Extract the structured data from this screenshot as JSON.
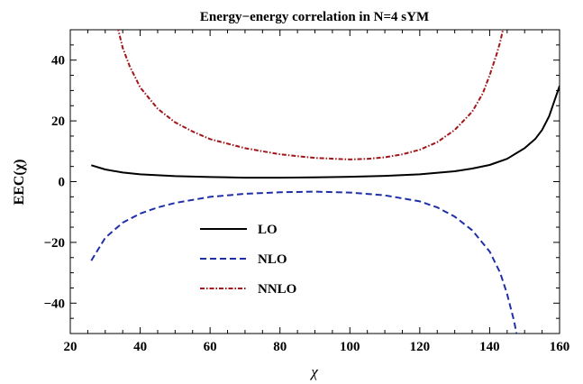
{
  "chart_data": {
    "type": "line",
    "title": "Energy−energy correlation in N=4 sYM",
    "xlabel": "χ",
    "ylabel": "EEC(χ)",
    "xlim": [
      20,
      160
    ],
    "ylim": [
      -50,
      50
    ],
    "xticks": [
      20,
      40,
      60,
      80,
      100,
      120,
      140,
      160
    ],
    "yticks": [
      -40,
      -20,
      0,
      20,
      40
    ],
    "xtick_labels": [
      "20",
      "40",
      "60",
      "80",
      "100",
      "120",
      "140",
      "160"
    ],
    "ytick_labels": [
      "−40",
      "−20",
      "0",
      "20",
      "40"
    ],
    "legend_position": "center-left",
    "series": [
      {
        "name": "LO",
        "color": "#000000",
        "style": "solid",
        "x": [
          26,
          30,
          35,
          40,
          50,
          60,
          70,
          80,
          90,
          100,
          110,
          120,
          130,
          135,
          140,
          145,
          150,
          153,
          155,
          157,
          160
        ],
        "y": [
          5.4,
          4.0,
          3.0,
          2.4,
          1.8,
          1.5,
          1.3,
          1.3,
          1.4,
          1.6,
          1.9,
          2.4,
          3.4,
          4.3,
          5.5,
          7.5,
          11.0,
          14.0,
          17.0,
          21.5,
          31.5
        ]
      },
      {
        "name": "NLO",
        "color": "#1f2fa8",
        "style": "dashed",
        "x": [
          26,
          30,
          35,
          40,
          45,
          50,
          60,
          70,
          80,
          90,
          100,
          110,
          120,
          125,
          130,
          135,
          140,
          143,
          145,
          147,
          148
        ],
        "y": [
          -26,
          -18.5,
          -13.5,
          -10.5,
          -8.5,
          -7,
          -5,
          -4,
          -3.5,
          -3.3,
          -3.6,
          -4.5,
          -6.5,
          -8.5,
          -11.5,
          -16,
          -23,
          -30,
          -37,
          -46,
          -52
        ]
      },
      {
        "name": "NNLO",
        "color": "#a0161a",
        "style": "dotdash",
        "x": [
          33.5,
          35,
          37,
          40,
          45,
          50,
          55,
          60,
          70,
          80,
          90,
          100,
          105,
          110,
          115,
          120,
          125,
          130,
          135,
          138,
          140,
          142,
          143,
          144
        ],
        "y": [
          51,
          44,
          38,
          31,
          24,
          19.5,
          16.5,
          14,
          11,
          9,
          7.8,
          7.3,
          7.5,
          8,
          9,
          10.5,
          13,
          17,
          23,
          29,
          35,
          42,
          46,
          51
        ]
      }
    ]
  }
}
